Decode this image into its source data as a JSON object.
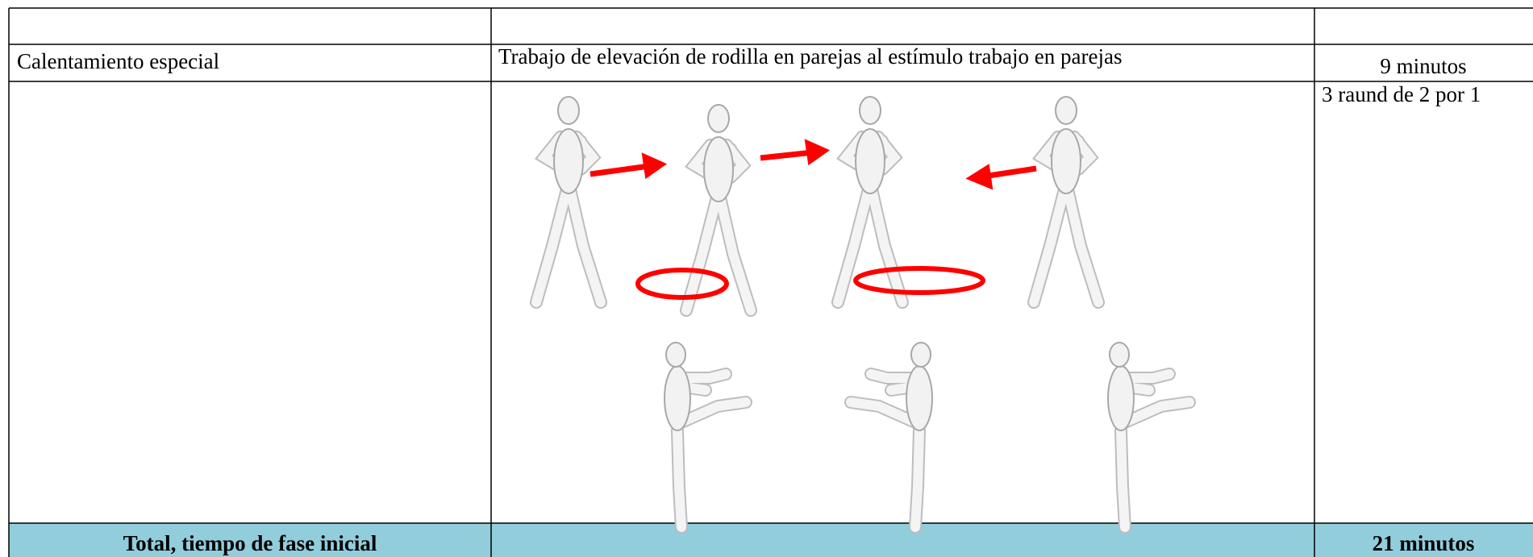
{
  "table": {
    "row": {
      "phase": "Calentamiento especial",
      "description": "Trabajo de elevación de rodilla en parejas al estímulo trabajo en parejas",
      "time": "9 minutos"
    },
    "detail": "3 raund de 2 por 1",
    "total": {
      "label": "Total, tiempo de fase inicial",
      "time": "21 minutos"
    }
  }
}
